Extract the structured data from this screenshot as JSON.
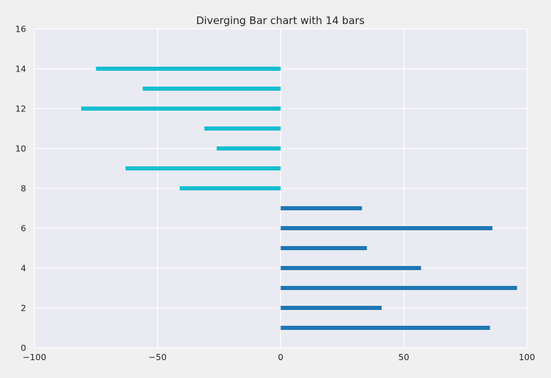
{
  "chart_data": {
    "type": "bar",
    "orientation": "horizontal",
    "title": "Diverging Bar chart with 14 bars",
    "xlabel": "",
    "ylabel": "",
    "xlim": [
      -100,
      100
    ],
    "ylim": [
      0,
      16
    ],
    "x_ticks": [
      -100,
      -50,
      0,
      50,
      100
    ],
    "y_ticks": [
      0,
      2,
      4,
      6,
      8,
      10,
      12,
      14,
      16
    ],
    "x_tick_labels": [
      "−100",
      "−50",
      "0",
      "50",
      "100"
    ],
    "y_tick_labels": [
      "0",
      "2",
      "4",
      "6",
      "8",
      "10",
      "12",
      "14",
      "16"
    ],
    "grid": true,
    "positions": [
      1,
      2,
      3,
      4,
      5,
      6,
      7,
      8,
      9,
      10,
      11,
      12,
      13,
      14
    ],
    "values": [
      85,
      41,
      96,
      57,
      35,
      86,
      33,
      -41,
      -63,
      -26,
      -31,
      -81,
      -56,
      -75
    ],
    "colors": {
      "positive": "#1f77b4",
      "negative": "#17becf",
      "plot_background": "#eaeaf2",
      "grid": "#ffffff",
      "figure_background": "#f0f0f0"
    }
  }
}
